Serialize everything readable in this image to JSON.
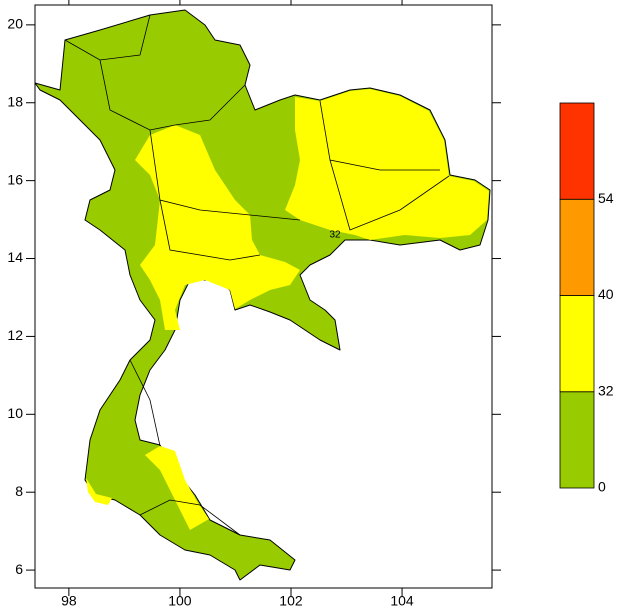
{
  "map": {
    "xlim": [
      97.39,
      105.62
    ],
    "ylim": [
      5.54,
      20.51
    ],
    "xticks": [
      98,
      100,
      102,
      104
    ],
    "yticks": [
      6,
      8,
      10,
      12,
      14,
      16,
      18,
      20
    ],
    "contour_label": "32",
    "colorbar": {
      "levels": [
        0,
        32,
        40,
        54
      ],
      "colors": [
        "#99cc00",
        "#ffff00",
        "#ff9900",
        "#ff3300"
      ]
    }
  }
}
